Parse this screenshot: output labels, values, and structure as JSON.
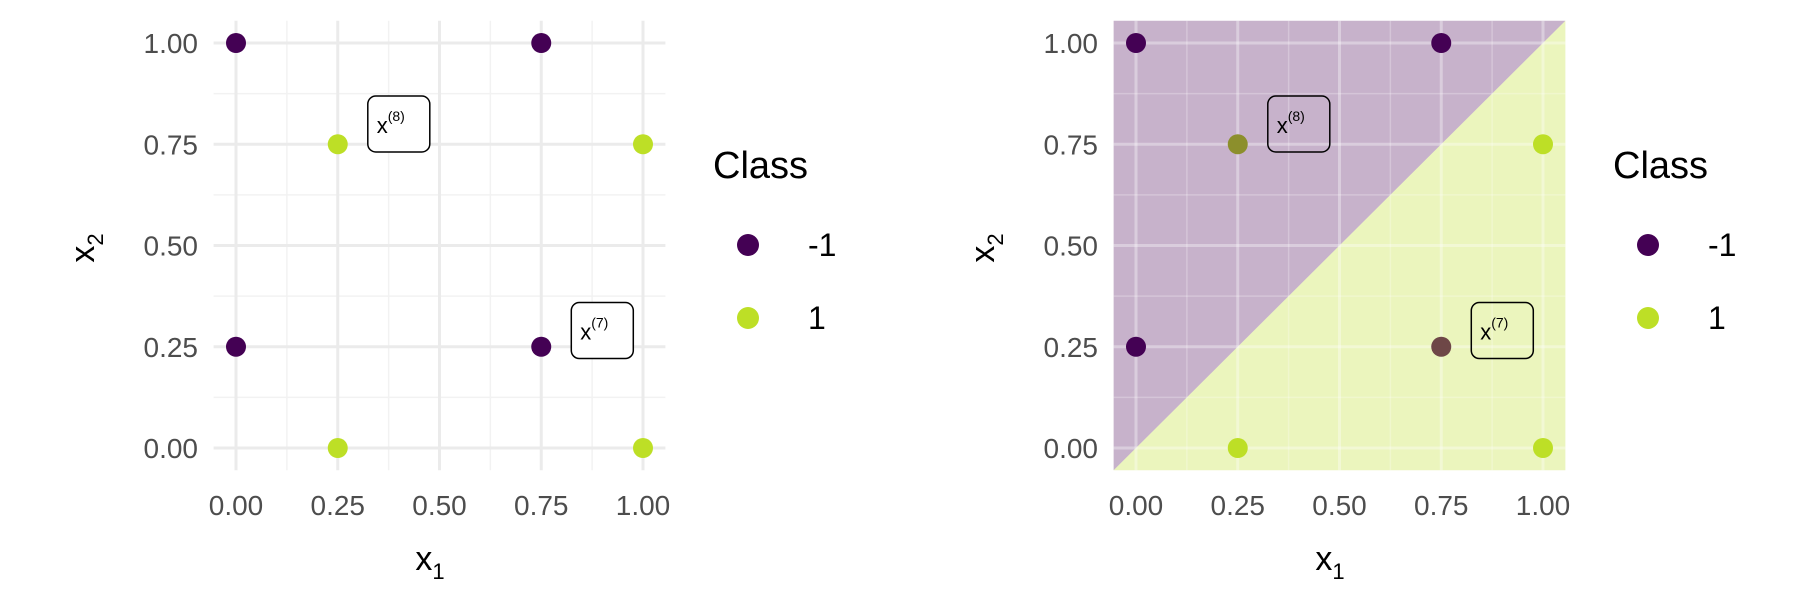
{
  "chart_data": [
    {
      "type": "scatter",
      "title": "",
      "xlabel": "x",
      "xlabel_sub": "1",
      "ylabel": "x",
      "ylabel_sub": "2",
      "xlim": [
        0,
        1
      ],
      "ylim": [
        0,
        1
      ],
      "xticks": [
        "0.00",
        "0.25",
        "0.50",
        "0.75",
        "1.00"
      ],
      "yticks": [
        "0.00",
        "0.25",
        "0.50",
        "0.75",
        "1.00"
      ],
      "grid": true,
      "legend": {
        "title": "Class",
        "position": "right",
        "entries": [
          {
            "label": "-1",
            "color": "#440154"
          },
          {
            "label": "1",
            "color": "#bddf26"
          }
        ]
      },
      "series": [
        {
          "class": "-1",
          "points": [
            [
              0,
              1
            ],
            [
              0.75,
              1
            ],
            [
              0,
              0.25
            ],
            [
              0.75,
              0.25
            ]
          ]
        },
        {
          "class": "1",
          "points": [
            [
              0.25,
              0.75
            ],
            [
              1,
              0.75
            ],
            [
              0.25,
              0
            ],
            [
              1,
              0
            ]
          ]
        }
      ],
      "annotations": [
        {
          "base": "x",
          "sup": "(8)",
          "x": 0.4,
          "y": 0.8
        },
        {
          "base": "x",
          "sup": "(7)",
          "x": 0.9,
          "y": 0.29
        }
      ],
      "regions": []
    },
    {
      "type": "scatter",
      "title": "",
      "xlabel": "x",
      "xlabel_sub": "1",
      "ylabel": "x",
      "ylabel_sub": "2",
      "xlim": [
        0,
        1
      ],
      "ylim": [
        0,
        1
      ],
      "xticks": [
        "0.00",
        "0.25",
        "0.50",
        "0.75",
        "1.00"
      ],
      "yticks": [
        "0.00",
        "0.25",
        "0.50",
        "0.75",
        "1.00"
      ],
      "grid": true,
      "legend": {
        "title": "Class",
        "position": "right",
        "entries": [
          {
            "label": "-1",
            "color": "#440154"
          },
          {
            "label": "1",
            "color": "#bddf26"
          }
        ]
      },
      "decision_boundary": "x2 = x1",
      "regions": [
        {
          "class": "-1",
          "side": "above",
          "color": "#440154",
          "opacity": 0.3
        },
        {
          "class": "1",
          "side": "below",
          "color": "#bddf26",
          "opacity": 0.3
        }
      ],
      "series": [
        {
          "class": "-1",
          "points": [
            [
              0,
              1
            ],
            [
              0.75,
              1
            ],
            [
              0,
              0.25
            ]
          ]
        },
        {
          "class": "1",
          "points": [
            [
              1,
              0.75
            ],
            [
              0.25,
              0
            ],
            [
              1,
              0
            ]
          ]
        }
      ],
      "misclassified": [
        {
          "class": "1",
          "x": 0.25,
          "y": 0.75,
          "color": "#8c8f2c"
        },
        {
          "class": "-1",
          "x": 0.75,
          "y": 0.25,
          "color": "#6e4747"
        }
      ],
      "annotations": [
        {
          "base": "x",
          "sup": "(8)",
          "x": 0.4,
          "y": 0.8
        },
        {
          "base": "x",
          "sup": "(7)",
          "x": 0.9,
          "y": 0.29
        }
      ]
    }
  ]
}
